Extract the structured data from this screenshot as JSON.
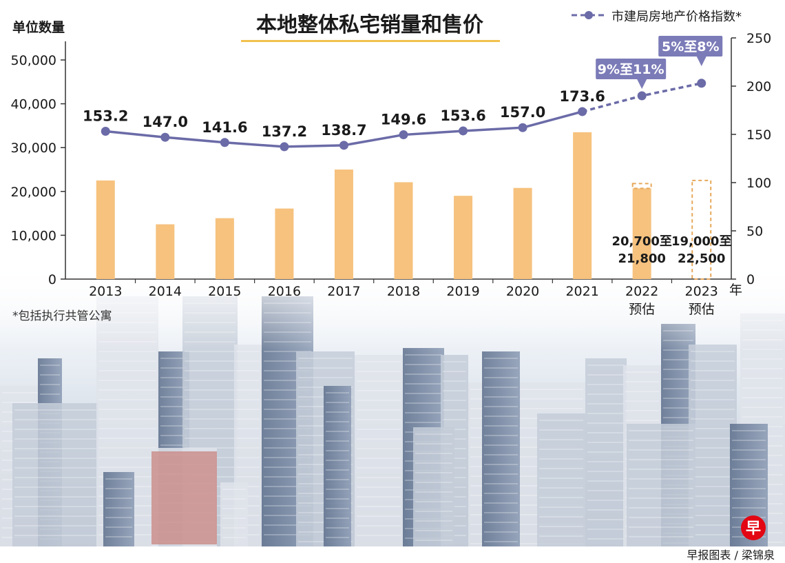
{
  "title": "本地整体私宅销量和售价",
  "footnote": "*包括执行共管公寓",
  "credit": "早报图表 / 梁锦泉",
  "logo_text": "早",
  "colors": {
    "bar": "#f6c27e",
    "bar_forecast_outline": "#e7a85a",
    "line": "#6b6ba8",
    "callout": "#7b7bb8",
    "title_underline": "#f2c14e"
  },
  "chart_data": {
    "type": "bar+line",
    "categories": [
      "2013",
      "2014",
      "2015",
      "2016",
      "2017",
      "2018",
      "2019",
      "2020",
      "2021",
      "2022",
      "2023"
    ],
    "category_sublabels": [
      "",
      "",
      "",
      "",
      "",
      "",
      "",
      "",
      "",
      "预估",
      "预估"
    ],
    "x_axis_unit": "年",
    "y_left": {
      "label": "单位数量",
      "ticks": [
        "0",
        "10,000",
        "20,000",
        "30,000",
        "40,000",
        "50,000"
      ],
      "range": [
        0,
        50000
      ]
    },
    "y_right": {
      "ticks": [
        "0",
        "50",
        "100",
        "150",
        "200",
        "250"
      ],
      "range": [
        0,
        250
      ]
    },
    "bars": {
      "name": "单位数量",
      "values": [
        22500,
        12500,
        13900,
        16100,
        25000,
        22100,
        19000,
        20800,
        33500,
        null,
        null
      ],
      "forecast_ranges": [
        null,
        null,
        null,
        null,
        null,
        null,
        null,
        null,
        null,
        [
          20700,
          21800
        ],
        [
          19000,
          22500
        ]
      ],
      "forecast_labels": [
        "",
        "",
        "",
        "",
        "",
        "",
        "",
        "",
        "",
        "20,700至\n21,800",
        "19,000至\n22,500"
      ]
    },
    "line": {
      "name": "市建局房地产价格指数*",
      "values": [
        153.2,
        147.0,
        141.6,
        137.2,
        138.7,
        149.6,
        153.6,
        157.0,
        173.6,
        190,
        203
      ],
      "labels": [
        "153.2",
        "147.0",
        "141.6",
        "137.2",
        "138.7",
        "149.6",
        "153.6",
        "157.0",
        "173.6",
        "",
        ""
      ],
      "forecast_callouts": [
        "",
        "",
        "",
        "",
        "",
        "",
        "",
        "",
        "",
        "9%至11%",
        "5%至8%"
      ]
    },
    "legend_position": "top-right",
    "grid": false
  }
}
